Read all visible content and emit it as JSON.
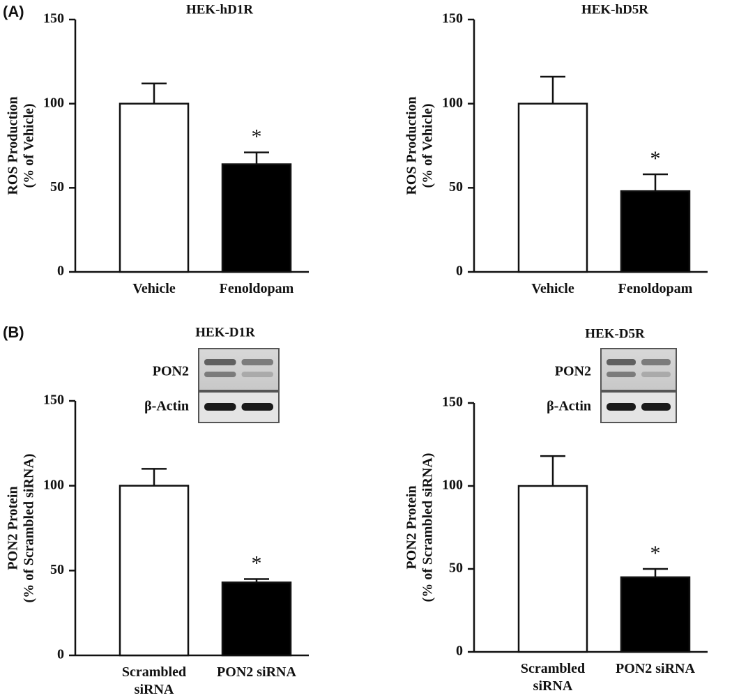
{
  "panel_labels": [
    "(A)",
    "(B)"
  ],
  "chart_data": [
    {
      "type": "bar",
      "title": "HEK-hD1R",
      "ylabel": [
        "ROS Production",
        "(% of Vehicle)"
      ],
      "categories": [
        "Vehicle",
        "Fenoldopam"
      ],
      "values": [
        100,
        64
      ],
      "errors": [
        12,
        7
      ],
      "significance": [
        null,
        "*"
      ],
      "colors": [
        "#ffffff",
        "#000000"
      ],
      "ylim": [
        0,
        150
      ],
      "yticks": [
        0,
        50,
        100,
        150
      ]
    },
    {
      "type": "bar",
      "title": "HEK-hD5R",
      "ylabel": [
        "ROS Production",
        "(% of Vehicle)"
      ],
      "categories": [
        "Vehicle",
        "Fenoldopam"
      ],
      "values": [
        100,
        48
      ],
      "errors": [
        16,
        10
      ],
      "significance": [
        null,
        "*"
      ],
      "colors": [
        "#ffffff",
        "#000000"
      ],
      "ylim": [
        0,
        150
      ],
      "yticks": [
        0,
        50,
        100,
        150
      ]
    },
    {
      "type": "bar",
      "title": "HEK-D1R",
      "ylabel": [
        "PON2 Protein",
        "(% of Scrambled siRNA)"
      ],
      "categories": [
        "Scrambled siRNA",
        "PON2 siRNA"
      ],
      "values": [
        100,
        43
      ],
      "errors": [
        10,
        2
      ],
      "significance": [
        null,
        "*"
      ],
      "colors": [
        "#ffffff",
        "#000000"
      ],
      "blot_labels": [
        "PON2",
        "β-Actin"
      ],
      "ylim": [
        0,
        150
      ],
      "yticks": [
        0,
        50,
        100,
        150
      ]
    },
    {
      "type": "bar",
      "title": "HEK-D5R",
      "ylabel": [
        "PON2 Protein",
        "(% of Scrambled siRNA)"
      ],
      "categories": [
        "Scrambled siRNA",
        "PON2 siRNA"
      ],
      "values": [
        100,
        45
      ],
      "errors": [
        18,
        5
      ],
      "significance": [
        null,
        "*"
      ],
      "colors": [
        "#ffffff",
        "#000000"
      ],
      "blot_labels": [
        "PON2",
        "β-Actin"
      ],
      "ylim": [
        0,
        150
      ],
      "yticks": [
        0,
        50,
        100,
        150
      ]
    }
  ]
}
